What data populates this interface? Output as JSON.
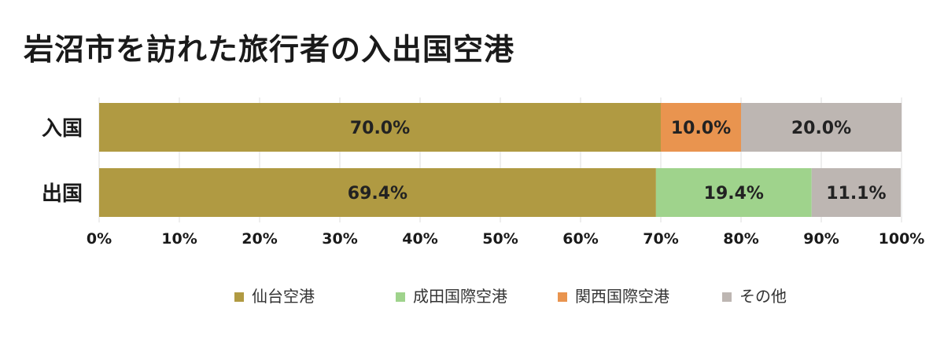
{
  "title": "岩沼市を訪れた旅行者の入出国空港",
  "chart_data": {
    "type": "bar",
    "orientation": "horizontal",
    "stacked": true,
    "normalized": true,
    "categories": [
      "入国",
      "出国"
    ],
    "series": [
      {
        "name": "仙台空港",
        "color": "#b09a42",
        "values": [
          70.0,
          69.4
        ],
        "labels": [
          "70.0%",
          "69.4%"
        ]
      },
      {
        "name": "成田国際空港",
        "color": "#9fd38c",
        "values": [
          0,
          19.4
        ],
        "labels": [
          "",
          "19.4%"
        ]
      },
      {
        "name": "関西国際空港",
        "color": "#e9944f",
        "values": [
          10.0,
          0
        ],
        "labels": [
          "10.0%",
          ""
        ]
      },
      {
        "name": "その他",
        "color": "#bdb6b2",
        "values": [
          20.0,
          11.1
        ],
        "labels": [
          "20.0%",
          "11.1%"
        ]
      }
    ],
    "xlim": [
      0,
      100
    ],
    "xticks": [
      "0%",
      "10%",
      "20%",
      "30%",
      "40%",
      "50%",
      "60%",
      "70%",
      "80%",
      "90%",
      "100%"
    ],
    "grid": true,
    "legend_position": "bottom"
  }
}
